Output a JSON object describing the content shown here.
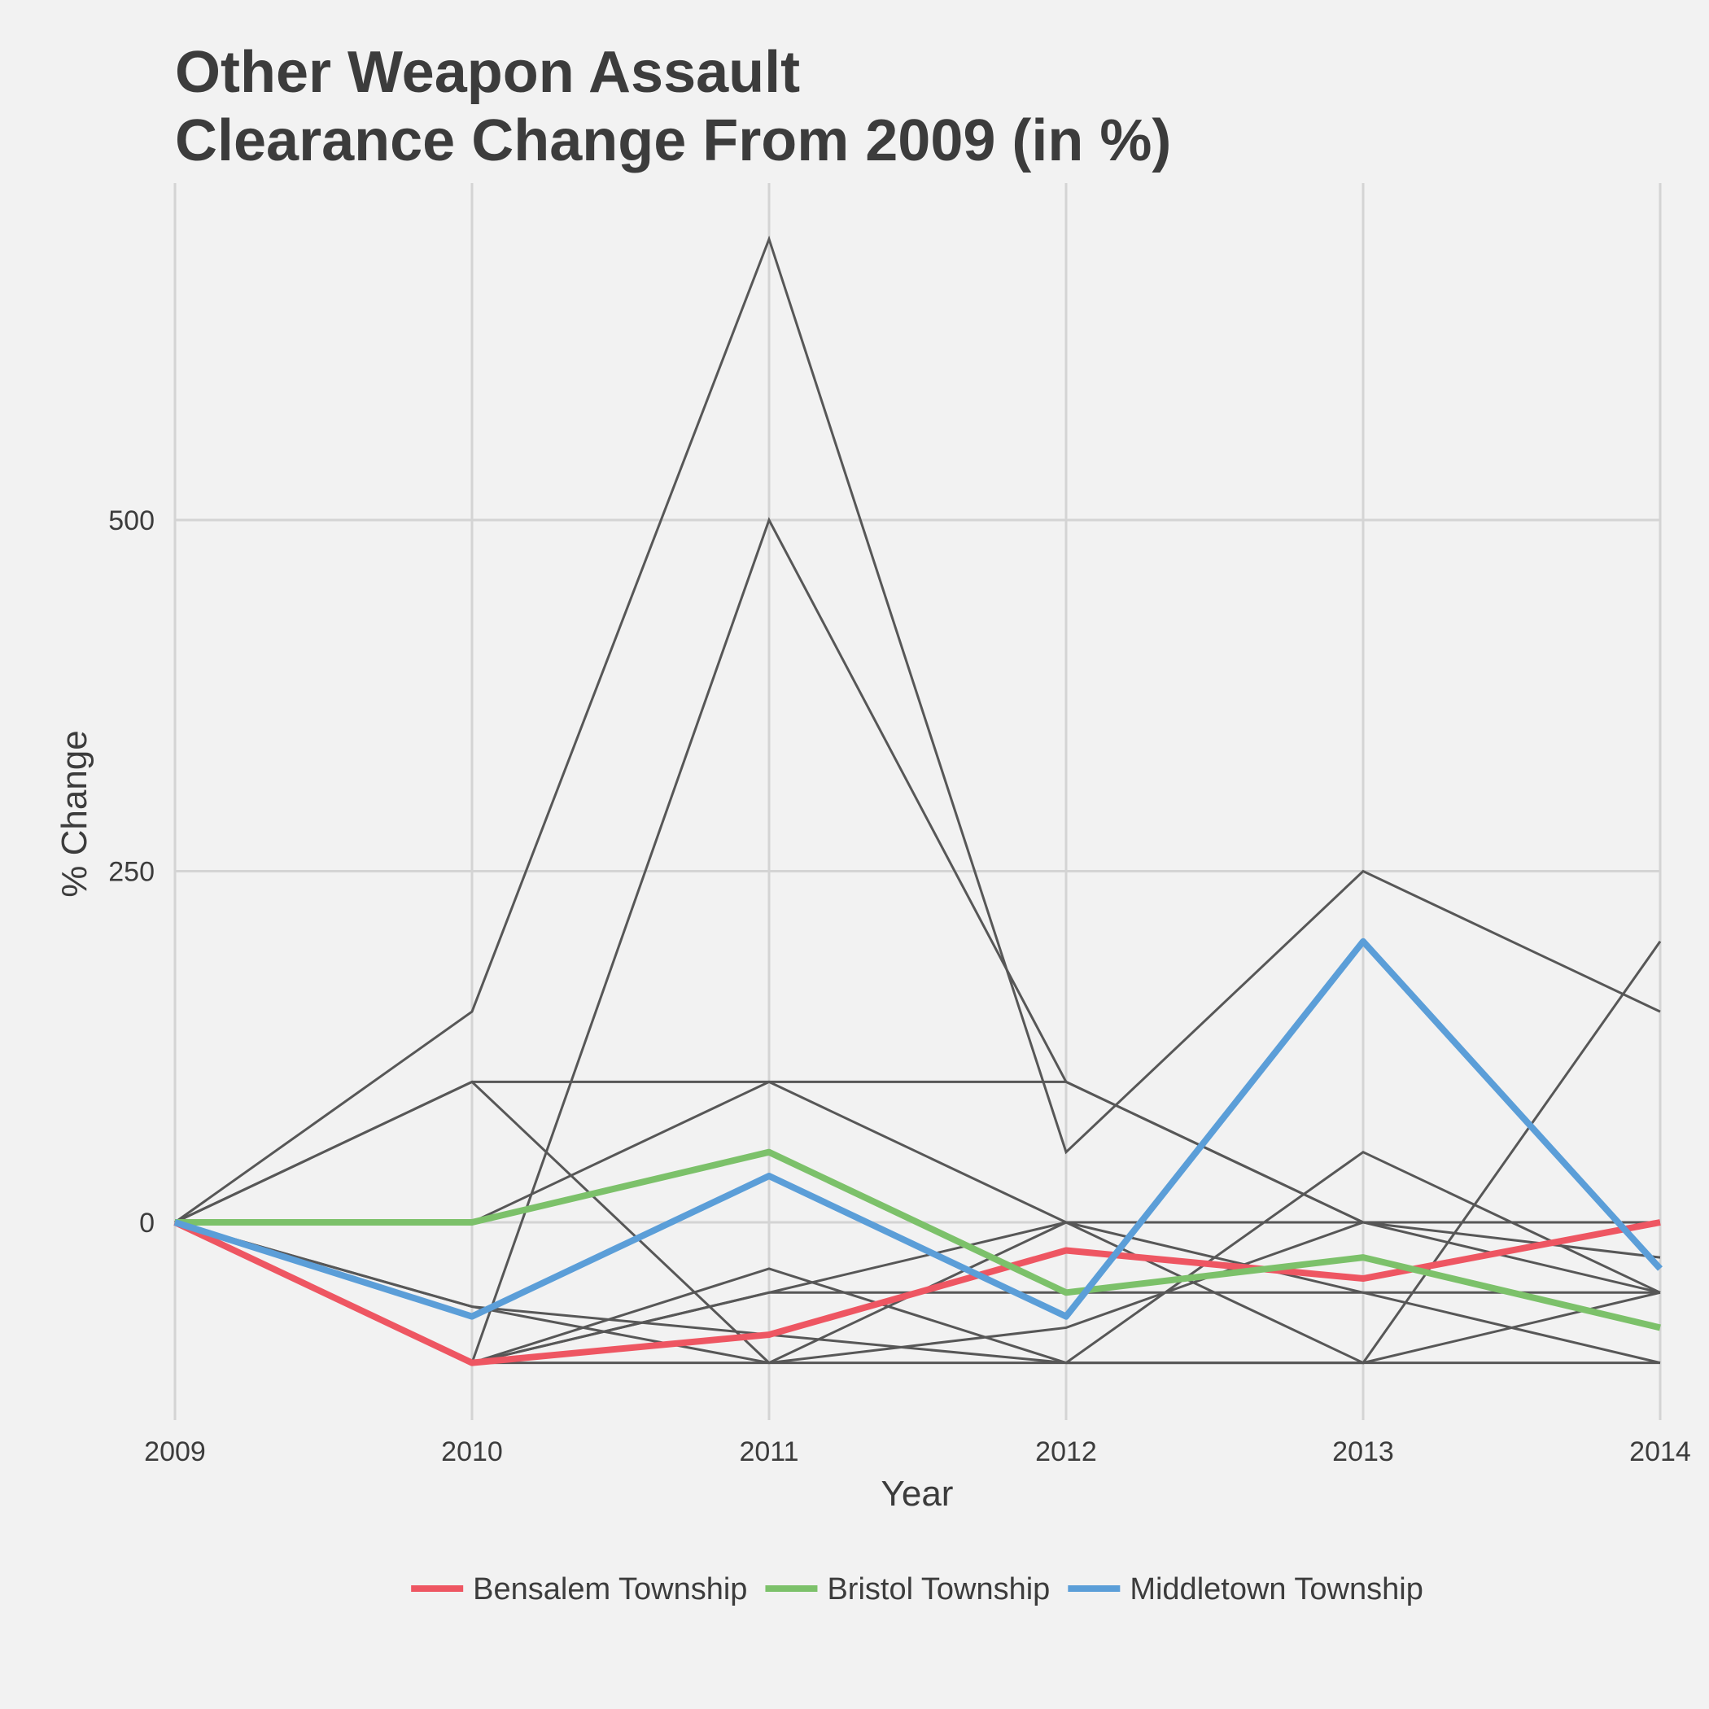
{
  "chart_data": {
    "type": "line",
    "title": [
      "Other Weapon Assault",
      "Clearance Change From 2009 (in %)"
    ],
    "xlabel": "Year",
    "ylabel": "% Change",
    "x": [
      2009,
      2010,
      2011,
      2012,
      2013,
      2014
    ],
    "xlim": [
      2009,
      2014
    ],
    "ylim": [
      -135,
      705
    ],
    "yticks": [
      0,
      250,
      500
    ],
    "grid": true,
    "legend_position": "bottom",
    "background_series": [
      {
        "values": [
          0,
          150,
          700,
          50,
          250,
          150
        ]
      },
      {
        "values": [
          0,
          -100,
          500,
          100,
          0,
          -50
        ]
      },
      {
        "values": [
          0,
          100,
          -100,
          -100,
          -100,
          -100
        ]
      },
      {
        "values": [
          0,
          100,
          100,
          100,
          0,
          -25
        ]
      },
      {
        "values": [
          0,
          0,
          100,
          0,
          -100,
          200
        ]
      },
      {
        "values": [
          0,
          -60,
          -80,
          -100,
          50,
          -50
        ]
      },
      {
        "values": [
          0,
          -60,
          -100,
          0,
          -50,
          -100
        ]
      },
      {
        "values": [
          0,
          -100,
          -33,
          -100,
          -100,
          -50
        ]
      },
      {
        "values": [
          0,
          -100,
          -50,
          -50,
          -50,
          -50
        ]
      },
      {
        "values": [
          0,
          -100,
          -100,
          -75,
          0,
          0
        ]
      },
      {
        "values": [
          0,
          -100,
          -50,
          0,
          0,
          0
        ]
      }
    ],
    "series": [
      {
        "name": "Bensalem Township",
        "color": "#ee5662",
        "values": [
          0,
          -100,
          -80,
          -20,
          -40,
          0
        ]
      },
      {
        "name": "Bristol Township",
        "color": "#7cc16a",
        "values": [
          0,
          0,
          50,
          -50,
          -25,
          -75
        ]
      },
      {
        "name": "Middletown Township",
        "color": "#5b9ed8",
        "values": [
          0,
          -67,
          33,
          -67,
          200,
          -33
        ]
      }
    ]
  }
}
